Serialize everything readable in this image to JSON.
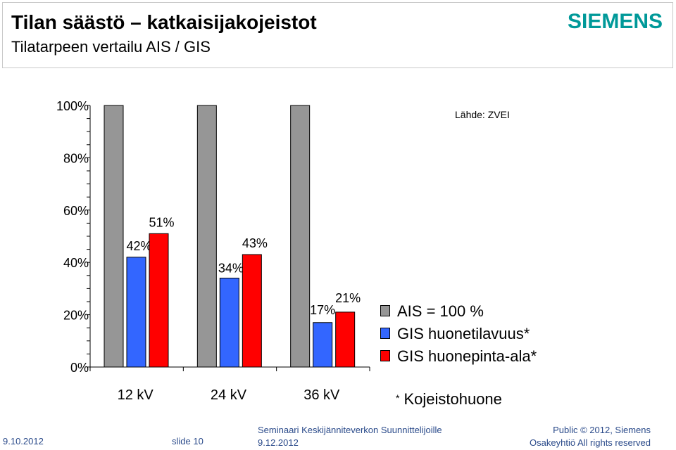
{
  "header": {
    "title": "Tilan säästö – katkaisijakojeistot",
    "subtitle": "Tilatarpeen vertailu AIS / GIS",
    "logo": "SIEMENS"
  },
  "source": "Lähde: ZVEI",
  "chart_data": {
    "type": "bar",
    "categories": [
      "12 kV",
      "24 kV",
      "36 kV"
    ],
    "series": [
      {
        "name": "AIS = 100 %",
        "values": [
          100,
          100,
          100
        ],
        "color": "#969696",
        "labels": [
          "",
          "",
          ""
        ]
      },
      {
        "name": "GIS huonetilavuus*",
        "values": [
          42,
          34,
          17
        ],
        "color": "#3366ff",
        "labels": [
          "42%",
          "34%",
          "17%"
        ]
      },
      {
        "name": "GIS huonepinta-ala*",
        "values": [
          51,
          43,
          21
        ],
        "color": "#ff0000",
        "labels": [
          "51%",
          "43%",
          "21%"
        ]
      }
    ],
    "yticks": [
      0,
      20,
      40,
      60,
      80,
      100
    ],
    "ytick_labels": [
      "0%",
      "20%",
      "40%",
      "60%",
      "80%",
      "100%"
    ],
    "ylim": [
      0,
      100
    ],
    "legend_position": "right"
  },
  "footnote": "Kojeistohuone",
  "footer": {
    "date": "9.10.2012",
    "slide": "slide 10",
    "seminar": "Seminaari Keskijänniteverkon Suunnittelijoille",
    "seminar_date": "9.12.2012",
    "public": "Public © 2012, Siemens",
    "rights": "Osakeyhtiö All rights reserved"
  },
  "colors": {
    "logo": "#009999",
    "footer_text": "#2a4a8a"
  }
}
